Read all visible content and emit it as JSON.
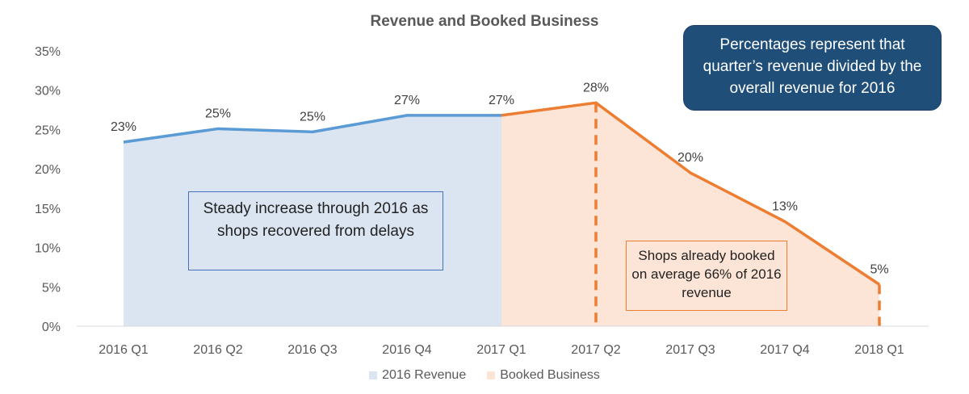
{
  "chart_data": {
    "type": "area",
    "title": "Revenue and Booked Business",
    "categories": [
      "2016 Q1",
      "2016 Q2",
      "2016 Q3",
      "2016 Q4",
      "2017 Q1",
      "2017 Q2",
      "2017 Q3",
      "2017 Q4",
      "2018 Q1"
    ],
    "y_ticks": [
      "0%",
      "5%",
      "10%",
      "15%",
      "20%",
      "25%",
      "30%",
      "35%"
    ],
    "ylim": [
      0,
      35
    ],
    "series": [
      {
        "name": "2016 Revenue",
        "color": "#dbe5f1",
        "line_color": "#5b9bd5",
        "x": [
          "2016 Q1",
          "2016 Q2",
          "2016 Q3",
          "2016 Q4",
          "2017 Q1"
        ],
        "values": [
          23.4,
          25.1,
          24.7,
          26.8,
          26.8
        ],
        "labels": [
          "23%",
          "25%",
          "25%",
          "27%",
          "27%"
        ]
      },
      {
        "name": "Booked Business",
        "color": "#fce4d6",
        "line_color": "#ed7d31",
        "x": [
          "2017 Q1",
          "2017 Q2",
          "2017 Q3",
          "2017 Q4",
          "2018 Q1"
        ],
        "values": [
          26.8,
          28.4,
          19.5,
          13.3,
          5.3
        ],
        "labels": [
          "",
          "28%",
          "20%",
          "13%",
          "5%"
        ]
      }
    ],
    "dashed_drops": [
      "2017 Q2",
      "2018 Q1"
    ],
    "grid": false,
    "legend_position": "bottom"
  },
  "annotations": {
    "note": "Percentages represent that quarter’s revenue divided by the overall revenue for 2016",
    "steady": "Steady increase through 2016 as shops recovered from delays",
    "booked": "Shops already booked on average 66% of 2016 revenue"
  }
}
